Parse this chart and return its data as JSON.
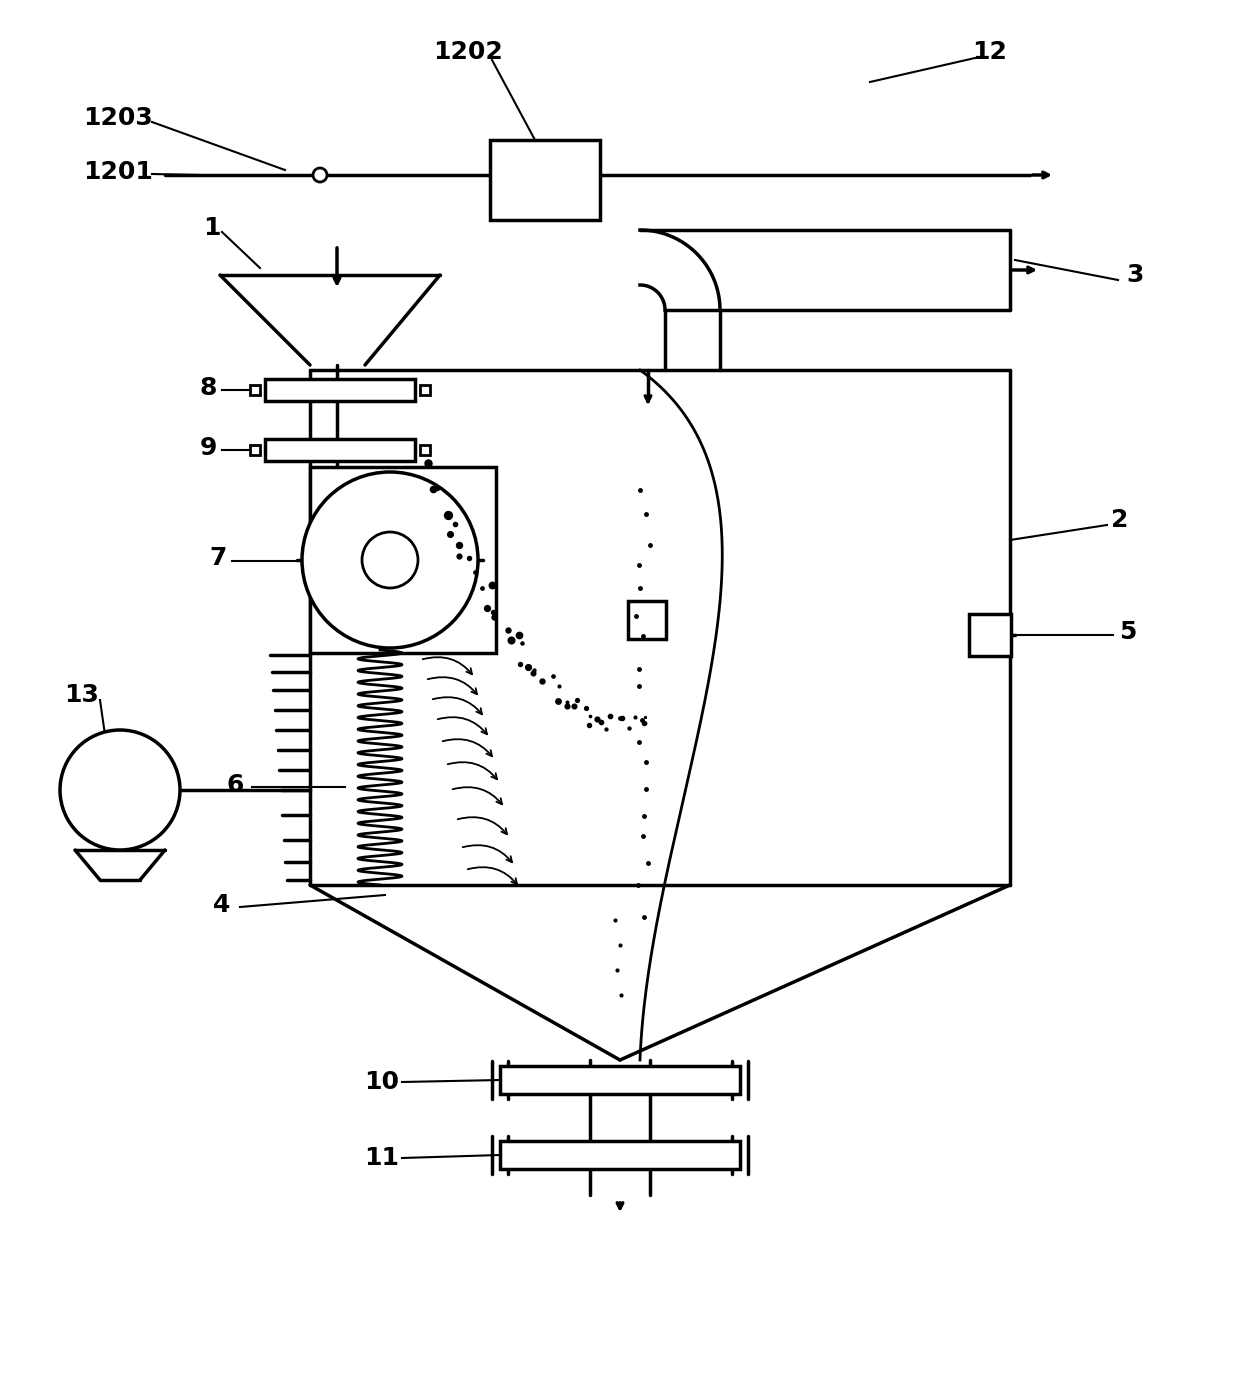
{
  "bg_color": "#ffffff",
  "line_color": "#000000",
  "lw": 2.0,
  "lw_thick": 2.5,
  "figsize": [
    12.4,
    13.73
  ],
  "dpi": 100
}
